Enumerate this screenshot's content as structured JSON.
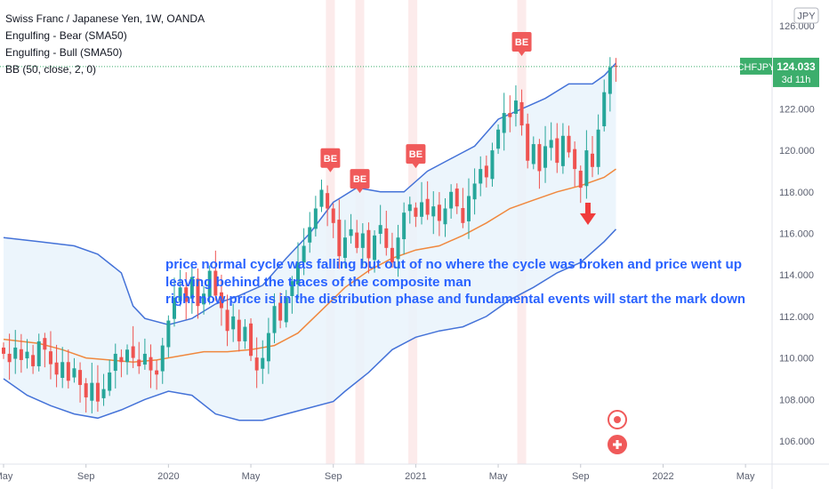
{
  "legend": {
    "line1": "Swiss Franc / Japanese Yen, 1W, OANDA",
    "line2": "Engulfing - Bear (SMA50)",
    "line3": "Engulfing - Bull (SMA50)",
    "line4": "BB (50, close, 2, 0)"
  },
  "currency_badge": "JPY",
  "price_tag": {
    "symbol": "CHFJPY",
    "price": "124.033",
    "countdown": "3d 11h"
  },
  "colors": {
    "up": "#26a69a",
    "down": "#ef5350",
    "bb_band": "#4472d8",
    "bb_basis": "#f0883e",
    "bb_fill": "#e9f3fb",
    "annotation": "#2962ff",
    "highlight": "#fbe4e4",
    "tag": "#3cae6c",
    "marker": "#f05a5a"
  },
  "annotation": [
    "price normal cycle was falling but out of no where the cycle was broken and price went up",
    "leaving behind the traces of the composite man",
    "right now price is in the distribution phase and fundamental events will  start the mark down"
  ],
  "markers": [
    {
      "label": "BE",
      "t": 55.5,
      "price": 118.9
    },
    {
      "label": "BE",
      "t": 60.5,
      "price": 117.9
    },
    {
      "label": "BE",
      "t": 70.0,
      "price": 119.1
    },
    {
      "label": "BE",
      "t": 88.0,
      "price": 124.5
    }
  ],
  "highlight_weeks": [
    55.5,
    60.5,
    69.5,
    88.0
  ],
  "bottom_icons": [
    "target-icon",
    "plus-icon"
  ],
  "chart_data": {
    "type": "candlestick",
    "title": "Swiss Franc / Japanese Yen, 1W, OANDA",
    "x_ticks": [
      {
        "label": "May",
        "t": 0
      },
      {
        "label": "Sep",
        "t": 14
      },
      {
        "label": "2020",
        "t": 28
      },
      {
        "label": "May",
        "t": 42
      },
      {
        "label": "Sep",
        "t": 56
      },
      {
        "label": "2021",
        "t": 70
      },
      {
        "label": "May",
        "t": 84
      },
      {
        "label": "Sep",
        "t": 98
      },
      {
        "label": "2022",
        "t": 112
      },
      {
        "label": "May",
        "t": 126
      }
    ],
    "ylim": [
      105.0,
      127.0
    ],
    "y_ticks": [
      "106.000",
      "108.000",
      "110.000",
      "112.000",
      "114.000",
      "116.000",
      "118.000",
      "120.000",
      "122.000",
      "124.000",
      "126.000"
    ],
    "last_price": 124.033,
    "closes": [
      110.2,
      109.8,
      110.5,
      109.9,
      110.3,
      109.6,
      110.8,
      110.4,
      109.7,
      109.2,
      109.8,
      108.9,
      109.5,
      108.7,
      108.1,
      108.8,
      107.9,
      108.5,
      109.3,
      110.2,
      109.8,
      110.4,
      110.0,
      109.6,
      110.2,
      109.4,
      109.2,
      110.6,
      111.8,
      112.9,
      113.4,
      112.7,
      113.9,
      112.5,
      113.1,
      114.2,
      113.0,
      112.4,
      111.3,
      112.0,
      110.8,
      111.5,
      110.1,
      109.4,
      110.0,
      111.2,
      112.5,
      111.8,
      112.9,
      113.7,
      114.6,
      115.4,
      116.3,
      117.2,
      118.1,
      117.2,
      116.5,
      114.9,
      115.8,
      116.2,
      115.3,
      116.0,
      114.8,
      115.9,
      116.4,
      115.3,
      114.6,
      115.8,
      117.0,
      117.4,
      116.8,
      117.5,
      116.9,
      117.3,
      116.6,
      117.2,
      118.0,
      117.3,
      116.5,
      117.8,
      118.4,
      119.1,
      118.7,
      120.0,
      121.0,
      121.8,
      121.6,
      122.4,
      121.2,
      119.5,
      120.3,
      119.0,
      120.2,
      120.5,
      119.4,
      120.7,
      119.9,
      119.1,
      118.2,
      120.0,
      119.2,
      121.0,
      122.8,
      124.0,
      124.033
    ],
    "bollinger": {
      "upper": [
        [
          0,
          115.8
        ],
        [
          6,
          115.6
        ],
        [
          12,
          115.4
        ],
        [
          16,
          115.0
        ],
        [
          20,
          114.1
        ],
        [
          22,
          112.5
        ],
        [
          24,
          111.9
        ],
        [
          28,
          111.6
        ],
        [
          32,
          111.9
        ],
        [
          36,
          112.6
        ],
        [
          40,
          113.0
        ],
        [
          44,
          113.5
        ],
        [
          48,
          114.8
        ],
        [
          52,
          116.0
        ],
        [
          56,
          117.5
        ],
        [
          60,
          118.2
        ],
        [
          64,
          118.0
        ],
        [
          68,
          118.0
        ],
        [
          72,
          119.0
        ],
        [
          76,
          119.6
        ],
        [
          80,
          120.2
        ],
        [
          84,
          121.5
        ],
        [
          88,
          122.0
        ],
        [
          92,
          122.5
        ],
        [
          96,
          123.2
        ],
        [
          100,
          123.2
        ],
        [
          102,
          123.6
        ],
        [
          104,
          124.2
        ]
      ],
      "basis": [
        [
          0,
          110.9
        ],
        [
          6,
          110.7
        ],
        [
          10,
          110.4
        ],
        [
          14,
          110.0
        ],
        [
          18,
          109.9
        ],
        [
          22,
          109.8
        ],
        [
          26,
          109.9
        ],
        [
          30,
          110.1
        ],
        [
          34,
          110.3
        ],
        [
          38,
          110.3
        ],
        [
          42,
          110.4
        ],
        [
          46,
          110.6
        ],
        [
          50,
          111.2
        ],
        [
          54,
          112.3
        ],
        [
          58,
          113.4
        ],
        [
          62,
          114.2
        ],
        [
          66,
          114.8
        ],
        [
          70,
          115.2
        ],
        [
          74,
          115.4
        ],
        [
          78,
          115.9
        ],
        [
          82,
          116.5
        ],
        [
          86,
          117.2
        ],
        [
          90,
          117.6
        ],
        [
          94,
          118.0
        ],
        [
          98,
          118.3
        ],
        [
          102,
          118.7
        ],
        [
          104,
          119.1
        ]
      ],
      "lower": [
        [
          0,
          109.0
        ],
        [
          4,
          108.2
        ],
        [
          8,
          107.7
        ],
        [
          12,
          107.3
        ],
        [
          16,
          107.1
        ],
        [
          20,
          107.5
        ],
        [
          24,
          108.0
        ],
        [
          28,
          108.4
        ],
        [
          32,
          108.2
        ],
        [
          36,
          107.3
        ],
        [
          40,
          107.0
        ],
        [
          44,
          107.0
        ],
        [
          48,
          107.3
        ],
        [
          52,
          107.6
        ],
        [
          56,
          107.9
        ],
        [
          58,
          108.4
        ],
        [
          62,
          109.3
        ],
        [
          66,
          110.4
        ],
        [
          70,
          111.0
        ],
        [
          74,
          111.3
        ],
        [
          78,
          111.5
        ],
        [
          82,
          112.0
        ],
        [
          86,
          112.8
        ],
        [
          90,
          113.4
        ],
        [
          94,
          114.1
        ],
        [
          98,
          114.6
        ],
        [
          102,
          115.6
        ],
        [
          104,
          116.2
        ]
      ]
    }
  }
}
